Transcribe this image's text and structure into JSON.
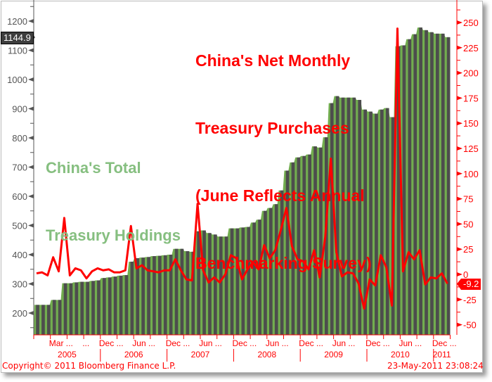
{
  "chart_data": {
    "type": "bar+line",
    "title": "China's Net Monthly Treasury Purchases (June Reflects Annual Benchmarking Survey)",
    "title_lines": [
      "China's Net Monthly",
      "Treasury Purchases",
      "(June Reflects Annual",
      "Benchmarking Survey)"
    ],
    "series_label_lines": [
      "China's Total",
      "Treasury Holdings"
    ],
    "x_start": "Jan 2005",
    "x_end": "Mar 2011",
    "series": [
      {
        "name": "China's Total Treasury Holdings",
        "axis": "left",
        "type": "bar",
        "values": [
          228,
          228,
          228,
          245,
          245,
          302,
          302,
          305,
          307,
          307,
          310,
          312,
          320,
          322,
          325,
          328,
          330,
          376,
          388,
          390,
          392,
          395,
          396,
          398,
          400,
          420,
          420,
          412,
          410,
          480,
          483,
          474,
          469,
          462,
          462,
          490,
          490,
          493,
          495,
          510,
          520,
          550,
          560,
          573,
          620,
          688,
          716,
          733,
          738,
          743,
          771,
          767,
          802,
          919,
          943,
          938,
          938,
          938,
          930,
          897,
          890,
          883,
          897,
          902,
          871,
          1114,
          1117,
          1138,
          1155,
          1178,
          1169,
          1162,
          1157,
          1157,
          1144.9
        ]
      },
      {
        "name": "China's Net Monthly Treasury Purchases",
        "axis": "right",
        "type": "line",
        "values": [
          1,
          2,
          -1,
          17,
          3,
          56,
          -1,
          6,
          4,
          -4,
          3,
          6,
          4,
          5,
          2,
          2,
          4,
          48,
          6,
          9,
          4,
          3,
          2,
          4,
          4,
          15,
          4,
          -5,
          -6,
          70,
          4,
          -8,
          -3,
          -8,
          0,
          19,
          16,
          -5,
          5,
          12,
          5,
          29,
          16,
          24,
          44,
          66,
          28,
          15,
          13,
          5,
          24,
          -3,
          37,
          115,
          22,
          -2,
          2,
          1,
          -9,
          -34,
          -5,
          -11,
          19,
          7,
          -31,
          244,
          3,
          22,
          15,
          24,
          -10,
          -3,
          -4,
          1,
          -9.2
        ]
      }
    ],
    "left_axis": {
      "ticks": [
        200,
        300,
        400,
        500,
        600,
        700,
        800,
        900,
        1000,
        1100,
        1200
      ],
      "range": [
        128,
        1262
      ]
    },
    "right_axis": {
      "ticks": [
        -50,
        -25,
        0,
        25,
        50,
        75,
        100,
        125,
        150,
        175,
        200,
        225,
        250
      ],
      "range": [
        -59,
        267
      ]
    },
    "last_values": {
      "left": "1144.9",
      "right": "-9.2"
    },
    "x_tick_labels": [
      {
        "month": 2,
        "label": "Mar ..."
      },
      {
        "month": 8,
        "label": "..."
      },
      {
        "month": 11,
        "label": "Dec ..."
      },
      {
        "month": 17,
        "label": "Jun ..."
      },
      {
        "month": 23,
        "label": "Dec ..."
      },
      {
        "month": 29,
        "label": "Jun ..."
      },
      {
        "month": 35,
        "label": "Dec ..."
      },
      {
        "month": 41,
        "label": "Jun ..."
      },
      {
        "month": 47,
        "label": "Dec ..."
      },
      {
        "month": 53,
        "label": "Jun ..."
      },
      {
        "month": 59,
        "label": "Dec ..."
      },
      {
        "month": 65,
        "label": "Jun ..."
      },
      {
        "month": 71,
        "label": "Dec ..."
      }
    ],
    "years": [
      {
        "start": 0,
        "end": 12,
        "label": "2005"
      },
      {
        "start": 12,
        "end": 24,
        "label": "2006"
      },
      {
        "start": 24,
        "end": 36,
        "label": "2007"
      },
      {
        "start": 36,
        "end": 48,
        "label": "2008"
      },
      {
        "start": 48,
        "end": 60,
        "label": "2009"
      },
      {
        "start": 60,
        "end": 72,
        "label": "2010"
      },
      {
        "start": 72,
        "end": 75,
        "label": "2011"
      }
    ]
  },
  "colors": {
    "bar": "#4d4d4d",
    "area": "#72ad4f",
    "line": "#ff0000",
    "left_axis": "#555555",
    "right_axis": "#ff0000"
  },
  "footer": {
    "copyright": "Copyright© 2011 Bloomberg Finance L.P.",
    "timestamp": "23-May-2011 23:08:24"
  }
}
